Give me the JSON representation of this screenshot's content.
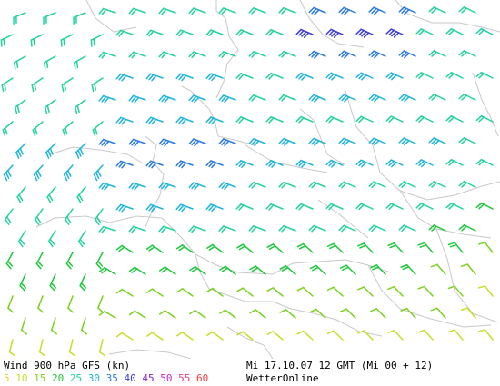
{
  "map": {
    "title": "Wind 900 hPa GFS (kn)",
    "timestamp": "Mi 17.10.07 12 GMT (Mi 00 + 12)",
    "provider": "WetterOnline",
    "legend": [
      {
        "label": "5",
        "color": "#e0d23a"
      },
      {
        "label": "10",
        "color": "#c8dc2a"
      },
      {
        "label": "15",
        "color": "#7ad21e"
      },
      {
        "label": "20",
        "color": "#1ec83c"
      },
      {
        "label": "25",
        "color": "#22d2a0"
      },
      {
        "label": "30",
        "color": "#1eb4dc"
      },
      {
        "label": "35",
        "color": "#2878e6"
      },
      {
        "label": "40",
        "color": "#3c3cdc"
      },
      {
        "label": "45",
        "color": "#8c28c8"
      },
      {
        "label": "50",
        "color": "#c828c8"
      },
      {
        "label": "55",
        "color": "#e63c8c"
      },
      {
        "label": "60",
        "color": "#f03c3c"
      }
    ]
  }
}
